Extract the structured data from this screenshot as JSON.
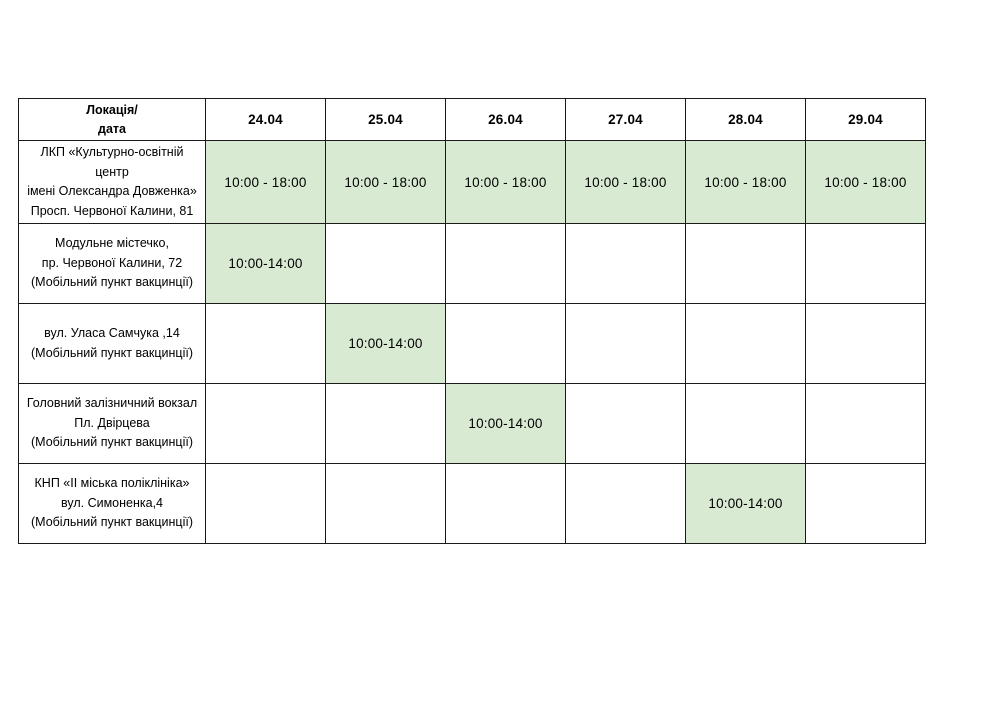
{
  "page": {
    "background_color": "#ffffff",
    "border_color": "#1a1a1a",
    "highlight_color": "#d9ead3"
  },
  "table": {
    "header": {
      "corner_label_line1": "Локація/",
      "corner_label_line2": "дата",
      "dates": [
        "24.04",
        "25.04",
        "26.04",
        "27.04",
        "28.04",
        "29.04"
      ]
    },
    "rows": [
      {
        "location_lines": [
          "ЛКП «Культурно-освітній центр",
          "імені Олександра Довженка»",
          "Просп. Червоної Калини, 81"
        ],
        "cells": [
          "10:00 - 18:00",
          "10:00 - 18:00",
          "10:00 - 18:00",
          "10:00 - 18:00",
          "10:00 - 18:00",
          "10:00 - 18:00"
        ],
        "highlighted": [
          true,
          true,
          true,
          true,
          true,
          true
        ]
      },
      {
        "location_lines": [
          "Модульне містечко,",
          "пр. Червоної Калини, 72",
          "(Мобільний пункт вакцинції)"
        ],
        "cells": [
          "10:00-14:00",
          "",
          "",
          "",
          "",
          ""
        ],
        "highlighted": [
          true,
          false,
          false,
          false,
          false,
          false
        ]
      },
      {
        "location_lines": [
          "вул. Уласа Самчука ,14",
          "(Мобільний пункт вакцинції)"
        ],
        "cells": [
          "",
          "10:00-14:00",
          "",
          "",
          "",
          ""
        ],
        "highlighted": [
          false,
          true,
          false,
          false,
          false,
          false
        ]
      },
      {
        "location_lines": [
          "Головний залізничний вокзал",
          "Пл. Двірцева",
          "(Мобільний пункт вакцинції)"
        ],
        "cells": [
          "",
          "",
          "10:00-14:00",
          "",
          "",
          ""
        ],
        "highlighted": [
          false,
          false,
          true,
          false,
          false,
          false
        ]
      },
      {
        "location_lines": [
          "КНП «ІІ міська поліклініка»",
          "вул. Симоненка,4",
          "(Мобільний пункт вакцинції)"
        ],
        "cells": [
          "",
          "",
          "",
          "",
          "10:00-14:00",
          ""
        ],
        "highlighted": [
          false,
          false,
          false,
          false,
          true,
          false
        ]
      }
    ]
  }
}
